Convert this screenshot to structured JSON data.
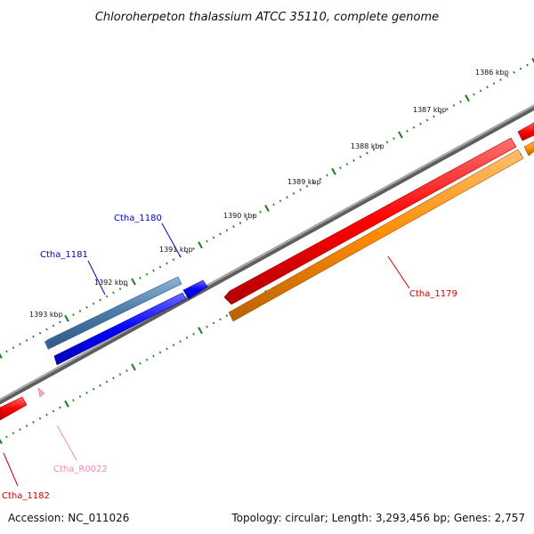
{
  "title": "Chloroherpeton thalassium ATCC 35110, complete genome",
  "footer": {
    "accession": "Accession: NC_011026",
    "summary": "Topology: circular; Length: 3,293,456 bp; Genes: 2,757"
  },
  "ruler": {
    "ticks": [
      "1386 kbp",
      "1387 kbp",
      "1388 kbp",
      "1389 kbp",
      "1390 kbp",
      "1391 kbp",
      "1392 kbp",
      "1393 kbp"
    ]
  },
  "genes": {
    "ctha_1180": {
      "label": "Ctha_1180",
      "color": "#0000cc"
    },
    "ctha_1181": {
      "label": "Ctha_1181",
      "color": "#0000cc"
    },
    "ctha_1179": {
      "label": "Ctha_1179",
      "color": "#cc0000"
    },
    "ctha_1182": {
      "label": "Ctha_1182",
      "color": "#cc0000"
    },
    "ctha_r0022": {
      "label": "Ctha_R0022",
      "color": "#f08ab8"
    }
  },
  "colors": {
    "cds_forward": "#0000ff",
    "gene_forward": "#4a7aa8",
    "cds_reverse": "#ff0000",
    "gene_reverse": "#ff8c00",
    "rna": "#f7a8cc",
    "backbone": "#808080",
    "tick": "#1e7a1e"
  }
}
